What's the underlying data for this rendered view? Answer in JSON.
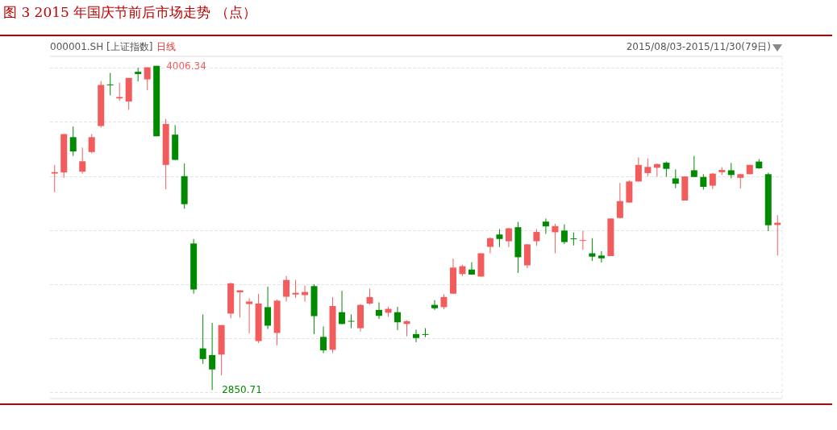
{
  "chart_data": {
    "type": "candlestick",
    "title": "图 3 2015 年国庆节前后市场走势 （点）",
    "subtitle": "000001.SH [上证指数]",
    "annotations": [
      "日线",
      "2015/08/03-2015/11/30(79日)",
      "4006.34",
      "2850.71"
    ],
    "categories": [
      null,
      null,
      null,
      null,
      null,
      null,
      null,
      null,
      null,
      null,
      null,
      null,
      null,
      null,
      null,
      null,
      null,
      null,
      null,
      null,
      null,
      null,
      null,
      null,
      null,
      null,
      null,
      null,
      null,
      null,
      null,
      null,
      null,
      null,
      null,
      null,
      null,
      null,
      null,
      null,
      null,
      null,
      null,
      null,
      null,
      null,
      null,
      null,
      null,
      null,
      null,
      null,
      null,
      null,
      null,
      null,
      null,
      null,
      null,
      null,
      null,
      null,
      null,
      null,
      null,
      null,
      null,
      null,
      null,
      null,
      null,
      null,
      null,
      null,
      null,
      null,
      null,
      null,
      null
    ],
    "ohlc": [
      [
        3622,
        3653,
        3556,
        3627
      ],
      [
        3626,
        3763,
        3607,
        3763
      ],
      [
        3752,
        3790,
        3685,
        3701
      ],
      [
        3629,
        3715,
        3622,
        3666
      ],
      [
        3699,
        3763,
        3694,
        3752
      ],
      [
        3792,
        3952,
        3786,
        3938
      ],
      [
        3940,
        3981,
        3901,
        3937
      ],
      [
        3890,
        3946,
        3882,
        3895
      ],
      [
        3879,
        3963,
        3849,
        3963
      ],
      [
        3985,
        3999,
        3951,
        3977
      ],
      [
        3958,
        4001,
        3919,
        4001
      ],
      [
        4006,
        4006.34,
        3755,
        3755
      ],
      [
        3653,
        3817,
        3566,
        3799
      ],
      [
        3761,
        3795,
        3671,
        3671
      ],
      [
        3613,
        3658,
        3497,
        3513
      ],
      [
        3373,
        3389,
        3194,
        3209
      ],
      [
        2999,
        3120,
        2944,
        2961
      ],
      [
        2975,
        3090,
        2850.71,
        2924
      ],
      [
        2977,
        3082,
        2903,
        3082
      ],
      [
        3123,
        3233,
        3106,
        3231
      ],
      [
        3199,
        3206,
        3109,
        3206
      ],
      [
        3157,
        3178,
        3053,
        3166
      ],
      [
        3025,
        3193,
        3018,
        3159
      ],
      [
        3146,
        3219,
        3068,
        3080
      ],
      [
        3054,
        3173,
        3010,
        3169
      ],
      [
        3183,
        3257,
        3166,
        3243
      ],
      [
        3191,
        3243,
        3179,
        3197
      ],
      [
        3189,
        3223,
        3166,
        3200
      ],
      [
        3221,
        3228,
        3050,
        3114
      ],
      [
        3040,
        3077,
        2982,
        2992
      ],
      [
        2994,
        3182,
        2982,
        3150
      ],
      [
        3128,
        3204,
        3085,
        3086
      ],
      [
        3097,
        3120,
        3071,
        3095
      ],
      [
        3071,
        3157,
        3059,
        3154
      ],
      [
        3159,
        3212,
        3155,
        3182
      ],
      [
        3136,
        3163,
        3104,
        3115
      ],
      [
        3126,
        3147,
        3112,
        3140
      ],
      [
        3128,
        3147,
        3064,
        3092
      ],
      [
        3086,
        3099,
        3042,
        3096
      ],
      [
        3050,
        3066,
        3021,
        3036
      ],
      [
        3050,
        3071,
        3039,
        3049
      ],
      [
        3154,
        3171,
        3136,
        3142
      ],
      [
        3146,
        3192,
        3139,
        3182
      ],
      [
        3194,
        3319,
        3192,
        3287
      ],
      [
        3264,
        3297,
        3257,
        3292
      ],
      [
        3280,
        3306,
        3262,
        3262
      ],
      [
        3255,
        3338,
        3255,
        3338
      ],
      [
        3361,
        3395,
        3338,
        3392
      ],
      [
        3405,
        3424,
        3360,
        3389
      ],
      [
        3381,
        3429,
        3360,
        3427
      ],
      [
        3431,
        3450,
        3268,
        3324
      ],
      [
        3295,
        3371,
        3285,
        3370
      ],
      [
        3381,
        3424,
        3365,
        3414
      ],
      [
        3451,
        3462,
        3407,
        3434
      ],
      [
        3413,
        3443,
        3338,
        3435
      ],
      [
        3419,
        3441,
        3371,
        3378
      ],
      [
        3391,
        3412,
        3366,
        3389
      ],
      [
        3383,
        3418,
        3350,
        3385
      ],
      [
        3338,
        3392,
        3311,
        3326
      ],
      [
        3330,
        3346,
        3305,
        3320
      ],
      [
        3328,
        3462,
        3328,
        3462
      ],
      [
        3464,
        3589,
        3462,
        3524
      ],
      [
        3519,
        3599,
        3517,
        3594
      ],
      [
        3594,
        3680,
        3593,
        3653
      ],
      [
        3624,
        3676,
        3613,
        3646
      ],
      [
        3643,
        3658,
        3612,
        3656
      ],
      [
        3661,
        3665,
        3611,
        3639
      ],
      [
        3605,
        3637,
        3570,
        3586
      ],
      [
        3526,
        3613,
        3526,
        3612
      ],
      [
        3634,
        3685,
        3610,
        3610
      ],
      [
        3610,
        3620,
        3565,
        3575
      ],
      [
        3579,
        3624,
        3567,
        3622
      ],
      [
        3627,
        3645,
        3617,
        3635
      ],
      [
        3634,
        3660,
        3605,
        3617
      ],
      [
        3607,
        3622,
        3569,
        3620
      ],
      [
        3620,
        3654,
        3619,
        3653
      ],
      [
        3665,
        3674,
        3639,
        3641
      ],
      [
        3620,
        3625,
        3417,
        3438
      ],
      [
        3439,
        3474,
        3330,
        3447
      ]
    ],
    "colors": [
      "#f25c5c",
      "#f25c5c",
      "#008a00",
      "#f25c5c",
      "#f25c5c",
      "#f25c5c",
      "#008a00",
      "#f25c5c",
      "#f25c5c",
      "#008a00",
      "#f25c5c",
      "#008a00",
      "#f25c5c",
      "#008a00",
      "#008a00",
      "#008a00",
      "#008a00",
      "#008a00",
      "#f25c5c",
      "#f25c5c",
      "#f25c5c",
      "#f25c5c",
      "#f25c5c",
      "#008a00",
      "#f25c5c",
      "#f25c5c",
      "#f25c5c",
      "#f25c5c",
      "#008a00",
      "#008a00",
      "#f25c5c",
      "#008a00",
      "#008a00",
      "#f25c5c",
      "#f25c5c",
      "#008a00",
      "#f25c5c",
      "#008a00",
      "#f25c5c",
      "#008a00",
      "#008a00",
      "#008a00",
      "#f25c5c",
      "#f25c5c",
      "#f25c5c",
      "#008a00",
      "#f25c5c",
      "#f25c5c",
      "#008a00",
      "#f25c5c",
      "#008a00",
      "#f25c5c",
      "#f25c5c",
      "#008a00",
      "#f25c5c",
      "#008a00",
      "#008a00",
      "#f25c5c",
      "#008a00",
      "#008a00",
      "#f25c5c",
      "#f25c5c",
      "#f25c5c",
      "#f25c5c",
      "#f25c5c",
      "#f25c5c",
      "#008a00",
      "#008a00",
      "#f25c5c",
      "#008a00",
      "#008a00",
      "#f25c5c",
      "#f25c5c",
      "#008a00",
      "#f25c5c",
      "#f25c5c",
      "#008a00",
      "#008a00",
      "#f25c5c"
    ],
    "ylim": [
      2820,
      4040
    ],
    "yticks": [
      {
        "value": 2842,
        "label": null
      },
      {
        "value": 3034,
        "label": null
      },
      {
        "value": 3226,
        "label": null
      },
      {
        "value": 3418,
        "label": null
      },
      {
        "value": 3613,
        "label": null
      },
      {
        "value": 3808,
        "label": null
      },
      {
        "value": 4000,
        "label": null
      }
    ],
    "grid": "y"
  }
}
